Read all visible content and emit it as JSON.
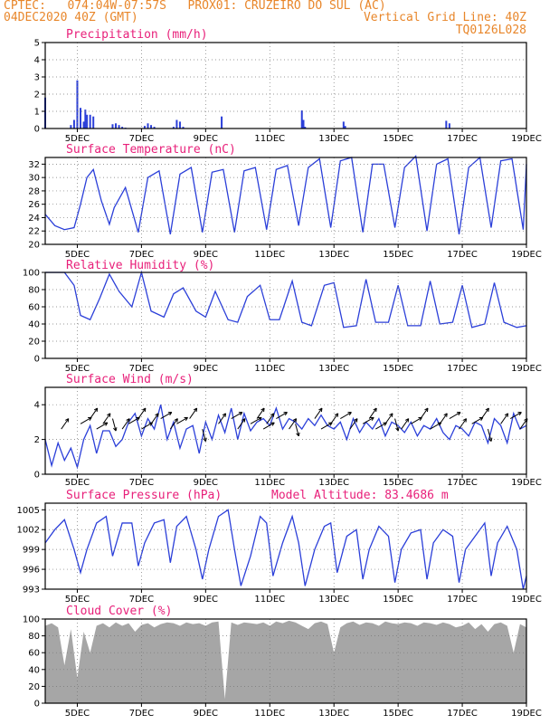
{
  "header": {
    "line1_left": "CPTEC:   074:04W-07:57S   PROX01: CRUZEIRO DO SUL (AC)",
    "line2_left": "04DEC2020 40Z (GMT)",
    "line2_right": "Vertical Grid Line: 40Z",
    "line3_right": "TQ0126L028"
  },
  "x_axis": {
    "tick_labels": [
      "5DEC",
      "7DEC",
      "9DEC",
      "11DEC",
      "13DEC",
      "15DEC",
      "17DEC",
      "19DEC"
    ],
    "tick_days": [
      5,
      7,
      9,
      11,
      13,
      15,
      17,
      19
    ],
    "start_day": 4.0,
    "end_day": 19.0
  },
  "colors": {
    "line": "#2b3fd9",
    "title": "#e8207a",
    "header": "#e8862a",
    "cloud": "#a6a6a6",
    "wind_arrow": "#000000"
  },
  "chart_data": [
    {
      "type": "bar",
      "title": "Precipitation (mm/h)",
      "ylim": [
        0,
        5
      ],
      "yticks": [
        "0",
        "1",
        "2",
        "3",
        "4",
        "5"
      ],
      "grid": true,
      "x": [
        4.0,
        4.8,
        4.9,
        5.0,
        5.1,
        5.2,
        5.25,
        5.3,
        5.4,
        5.5,
        6.1,
        6.2,
        6.3,
        6.4,
        6.5,
        7.1,
        7.2,
        7.3,
        7.4,
        8.0,
        8.1,
        8.2,
        8.3,
        9.5,
        12.0,
        12.05,
        12.1,
        13.3,
        13.35,
        16.5,
        16.6
      ],
      "values": [
        1.8,
        0.2,
        0.5,
        2.8,
        1.2,
        0.4,
        1.1,
        0.8,
        0.8,
        0.7,
        0.25,
        0.3,
        0.2,
        0.1,
        0.05,
        0.15,
        0.3,
        0.2,
        0.1,
        0.1,
        0.5,
        0.4,
        0.1,
        0.7,
        1.05,
        0.5,
        0.1,
        0.4,
        0.15,
        0.45,
        0.3
      ]
    },
    {
      "type": "line",
      "title": "Surface Temperature (nC)",
      "ylim": [
        20,
        33
      ],
      "yticks": [
        "20",
        "22",
        "24",
        "26",
        "28",
        "30",
        "32"
      ],
      "grid": true,
      "x": [
        4.0,
        4.3,
        4.6,
        4.9,
        5.1,
        5.3,
        5.5,
        5.75,
        6.0,
        6.15,
        6.5,
        6.9,
        7.2,
        7.55,
        7.9,
        8.2,
        8.55,
        8.9,
        9.2,
        9.55,
        9.9,
        10.2,
        10.55,
        10.9,
        11.2,
        11.55,
        11.9,
        12.2,
        12.55,
        12.9,
        13.2,
        13.55,
        13.9,
        14.2,
        14.55,
        14.9,
        15.2,
        15.55,
        15.9,
        16.2,
        16.55,
        16.9,
        17.2,
        17.55,
        17.9,
        18.2,
        18.55,
        18.9,
        19.0
      ],
      "values": [
        24.5,
        22.8,
        22.2,
        22.5,
        26.0,
        30.0,
        31.2,
        26.5,
        23.0,
        25.5,
        28.5,
        21.8,
        30.0,
        31.0,
        21.5,
        30.5,
        31.5,
        21.8,
        30.8,
        31.2,
        21.8,
        31.0,
        31.5,
        22.2,
        31.2,
        31.8,
        22.8,
        31.5,
        32.8,
        22.5,
        32.5,
        33.0,
        21.8,
        32.0,
        32.0,
        22.5,
        31.5,
        33.2,
        22.0,
        32.0,
        32.8,
        21.5,
        31.5,
        33.0,
        22.5,
        32.5,
        32.8,
        22.2,
        32.0
      ]
    },
    {
      "type": "line",
      "title": "Relative Humidity (%)",
      "ylim": [
        0,
        100
      ],
      "yticks": [
        "0",
        "20",
        "40",
        "60",
        "80",
        "100"
      ],
      "grid": true,
      "x": [
        4.0,
        4.3,
        4.6,
        4.9,
        5.1,
        5.4,
        5.7,
        6.0,
        6.3,
        6.7,
        7.0,
        7.3,
        7.7,
        8.0,
        8.3,
        8.7,
        9.0,
        9.3,
        9.7,
        10.0,
        10.3,
        10.7,
        11.0,
        11.3,
        11.7,
        12.0,
        12.3,
        12.7,
        13.0,
        13.3,
        13.7,
        14.0,
        14.3,
        14.7,
        15.0,
        15.3,
        15.7,
        16.0,
        16.3,
        16.7,
        17.0,
        17.3,
        17.7,
        18.0,
        18.3,
        18.7,
        19.0
      ],
      "values": [
        100,
        100,
        100,
        85,
        50,
        45,
        70,
        98,
        78,
        60,
        100,
        55,
        48,
        75,
        82,
        55,
        48,
        78,
        45,
        42,
        72,
        85,
        45,
        45,
        90,
        42,
        38,
        85,
        88,
        36,
        38,
        92,
        42,
        42,
        85,
        38,
        38,
        90,
        40,
        42,
        85,
        36,
        40,
        88,
        42,
        36,
        38
      ]
    },
    {
      "type": "line",
      "title": "Surface Wind (m/s)",
      "ylim": [
        0,
        5
      ],
      "yticks": [
        "0",
        "2",
        "4"
      ],
      "grid": true,
      "x": [
        4.0,
        4.2,
        4.4,
        4.6,
        4.8,
        5.0,
        5.2,
        5.4,
        5.6,
        5.8,
        6.0,
        6.2,
        6.4,
        6.6,
        6.8,
        7.0,
        7.2,
        7.4,
        7.6,
        7.8,
        8.0,
        8.2,
        8.4,
        8.6,
        8.8,
        9.0,
        9.2,
        9.4,
        9.6,
        9.8,
        10.0,
        10.2,
        10.4,
        10.6,
        10.8,
        11.0,
        11.2,
        11.4,
        11.6,
        11.8,
        12.0,
        12.2,
        12.4,
        12.6,
        12.8,
        13.0,
        13.2,
        13.4,
        13.6,
        13.8,
        14.0,
        14.2,
        14.4,
        14.6,
        14.8,
        15.0,
        15.2,
        15.4,
        15.6,
        15.8,
        16.0,
        16.2,
        16.4,
        16.6,
        16.8,
        17.0,
        17.2,
        17.4,
        17.6,
        17.8,
        18.0,
        18.2,
        18.4,
        18.6,
        18.8,
        19.0
      ],
      "values": [
        2.0,
        0.5,
        1.8,
        0.8,
        1.5,
        0.4,
        2.0,
        2.8,
        1.2,
        2.5,
        2.5,
        1.6,
        2.0,
        3.0,
        3.5,
        2.2,
        3.2,
        2.6,
        4.0,
        2.0,
        3.0,
        1.5,
        2.6,
        2.8,
        1.2,
        3.0,
        2.0,
        3.4,
        2.4,
        3.8,
        2.0,
        3.5,
        2.5,
        3.0,
        3.2,
        2.8,
        3.8,
        2.6,
        3.2,
        3.0,
        2.6,
        3.2,
        2.8,
        3.4,
        2.8,
        2.6,
        3.0,
        2.0,
        3.2,
        2.4,
        3.0,
        2.6,
        3.2,
        2.2,
        3.0,
        2.8,
        2.4,
        3.0,
        2.2,
        2.8,
        2.6,
        3.2,
        2.4,
        2.0,
        2.8,
        2.6,
        2.2,
        3.0,
        2.8,
        1.8,
        3.2,
        2.8,
        1.8,
        3.5,
        2.6,
        2.8
      ]
    },
    {
      "type": "line",
      "title": "Surface Pressure (hPa)",
      "annotation": "Model Altitude: 83.4686 m",
      "ylim": [
        993,
        1006
      ],
      "yticks": [
        "993",
        "996",
        "999",
        "1002",
        "1005"
      ],
      "grid": true,
      "x": [
        4.0,
        4.3,
        4.6,
        4.9,
        5.1,
        5.3,
        5.6,
        5.9,
        6.1,
        6.4,
        6.7,
        6.9,
        7.1,
        7.4,
        7.7,
        7.9,
        8.1,
        8.4,
        8.7,
        8.9,
        9.1,
        9.4,
        9.7,
        9.9,
        10.1,
        10.4,
        10.7,
        10.9,
        11.1,
        11.4,
        11.7,
        11.9,
        12.1,
        12.4,
        12.7,
        12.9,
        13.1,
        13.4,
        13.7,
        13.9,
        14.1,
        14.4,
        14.7,
        14.9,
        15.1,
        15.4,
        15.7,
        15.9,
        16.1,
        16.4,
        16.7,
        16.9,
        17.1,
        17.4,
        17.7,
        17.9,
        18.1,
        18.4,
        18.7,
        18.9,
        19.0
      ],
      "values": [
        1000,
        1002,
        1003.5,
        999,
        995.5,
        999,
        1003,
        1004,
        998,
        1003,
        1003,
        996.5,
        1000,
        1003,
        1003.5,
        997,
        1002.5,
        1004,
        999,
        994.5,
        999,
        1004,
        1005,
        999,
        993.5,
        998,
        1004,
        1003,
        995,
        1000,
        1004,
        1000,
        993.5,
        999,
        1002.5,
        1003,
        995.5,
        1001,
        1002,
        994.5,
        999,
        1002.5,
        1001,
        994,
        999,
        1001.5,
        1002,
        994.5,
        1000,
        1002,
        1001,
        994,
        999,
        1001,
        1003,
        995,
        1000,
        1002.5,
        999,
        993,
        995
      ]
    },
    {
      "type": "area",
      "title": "Cloud Cover (%)",
      "ylim": [
        0,
        100
      ],
      "yticks": [
        "0",
        "20",
        "40",
        "60",
        "80",
        "100"
      ],
      "grid": true,
      "x": [
        4.0,
        4.2,
        4.4,
        4.6,
        4.8,
        5.0,
        5.2,
        5.4,
        5.6,
        5.8,
        6.0,
        6.2,
        6.4,
        6.6,
        6.8,
        7.0,
        7.2,
        7.4,
        7.6,
        7.8,
        8.0,
        8.2,
        8.4,
        8.6,
        8.8,
        9.0,
        9.2,
        9.4,
        9.6,
        9.8,
        10.0,
        10.2,
        10.4,
        10.6,
        10.8,
        11.0,
        11.2,
        11.4,
        11.6,
        11.8,
        12.0,
        12.2,
        12.4,
        12.6,
        12.8,
        13.0,
        13.2,
        13.4,
        13.6,
        13.8,
        14.0,
        14.2,
        14.4,
        14.6,
        14.8,
        15.0,
        15.2,
        15.4,
        15.6,
        15.8,
        16.0,
        16.2,
        16.4,
        16.6,
        16.8,
        17.0,
        17.2,
        17.4,
        17.6,
        17.8,
        18.0,
        18.2,
        18.4,
        18.6,
        18.8,
        19.0
      ],
      "values": [
        92,
        95,
        90,
        45,
        88,
        30,
        85,
        60,
        92,
        95,
        90,
        96,
        92,
        95,
        85,
        93,
        95,
        90,
        94,
        96,
        95,
        92,
        96,
        94,
        95,
        92,
        96,
        97,
        5,
        96,
        93,
        96,
        95,
        94,
        96,
        92,
        97,
        95,
        98,
        96,
        92,
        88,
        95,
        97,
        94,
        60,
        90,
        95,
        97,
        93,
        96,
        95,
        92,
        97,
        95,
        94,
        96,
        95,
        92,
        96,
        95,
        93,
        96,
        94,
        90,
        92,
        96,
        88,
        94,
        85,
        94,
        96,
        92,
        60,
        94,
        90
      ]
    }
  ]
}
